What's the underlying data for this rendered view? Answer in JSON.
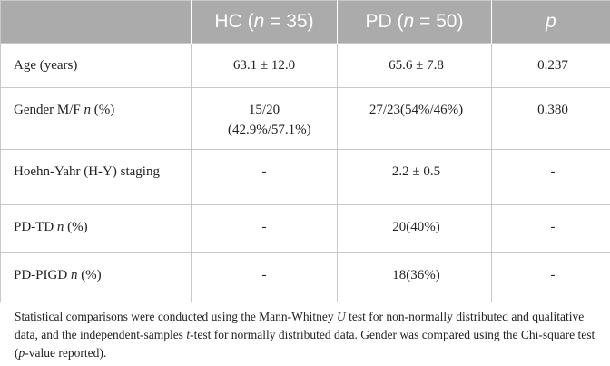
{
  "table": {
    "header": [
      [],
      [
        "HC (",
        {
          "text": "n",
          "italic": true
        },
        " = 35)"
      ],
      [
        "PD (",
        {
          "text": "n",
          "italic": true
        },
        " = 50)"
      ],
      [
        {
          "text": "p",
          "italic": true
        }
      ]
    ],
    "rows": [
      [
        [
          "Age (years)"
        ],
        [
          "63.1 ± 12.0"
        ],
        [
          "65.6 ± 7.8"
        ],
        [
          "0.237"
        ]
      ],
      [
        [
          "Gender M/F ",
          {
            "text": "n",
            "italic": true
          },
          " (%)"
        ],
        [
          "15/20 (42.9%/57.1%)"
        ],
        [
          "27/23(54%/46%)"
        ],
        [
          "0.380"
        ]
      ],
      [
        [
          "Hoehn-Yahr (H-Y) staging"
        ],
        [
          "-"
        ],
        [
          "2.2 ± 0.5"
        ],
        [
          "-"
        ]
      ],
      [
        [
          "PD-TD ",
          {
            "text": "n",
            "italic": true
          },
          " (%)"
        ],
        [
          "-"
        ],
        [
          "20(40%)"
        ],
        [
          "-"
        ]
      ],
      [
        [
          "PD-PIGD ",
          {
            "text": "n",
            "italic": true
          },
          " (%)"
        ],
        [
          "-"
        ],
        [
          "18(36%)"
        ],
        [
          "-"
        ]
      ]
    ],
    "footnote": [
      "Statistical comparisons were conducted using the Mann-Whitney ",
      {
        "text": "U",
        "italic": true
      },
      " test for non-normally distributed and qualitative data, and the independent-samples ",
      {
        "text": "t",
        "italic": true
      },
      "-test for normally distributed data. Gender was compared using the Chi-square test (",
      {
        "text": "p",
        "italic": true
      },
      "-value reported)."
    ]
  }
}
